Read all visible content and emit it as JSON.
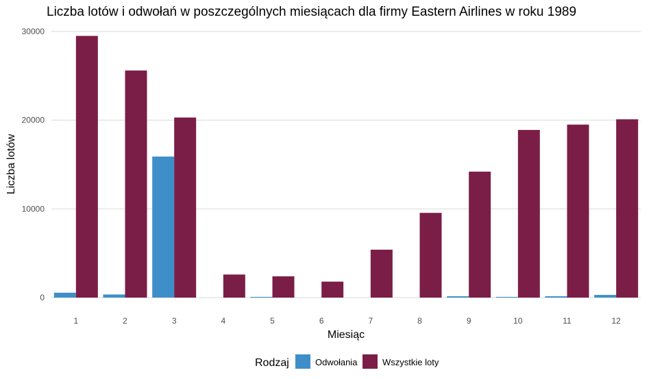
{
  "chart_data": {
    "type": "bar",
    "title": "Liczba lotów i odwołań w poszczególnych miesiącach dla firmy Eastern Airlines w roku 1989",
    "xlabel": "Miesiąc",
    "ylabel": "Liczba lotów",
    "categories": [
      "1",
      "2",
      "3",
      "4",
      "5",
      "6",
      "7",
      "8",
      "9",
      "10",
      "11",
      "12"
    ],
    "ylim": [
      0,
      30000
    ],
    "yticks": [
      0,
      10000,
      20000,
      30000
    ],
    "ytick_labels": [
      "0",
      "10000",
      "20000",
      "30000"
    ],
    "grid": true,
    "legend": {
      "title": "Rodzaj",
      "position": "bottom"
    },
    "series": [
      {
        "name": "Odwołania",
        "color": "#3e8fc9",
        "values": [
          550,
          350,
          15900,
          0,
          80,
          0,
          0,
          0,
          150,
          80,
          150,
          300
        ]
      },
      {
        "name": "Wszystkie loty",
        "color": "#7b1e47",
        "values": [
          29500,
          25600,
          20300,
          2600,
          2400,
          1800,
          5400,
          9550,
          14200,
          18900,
          19500,
          20100
        ]
      }
    ]
  }
}
